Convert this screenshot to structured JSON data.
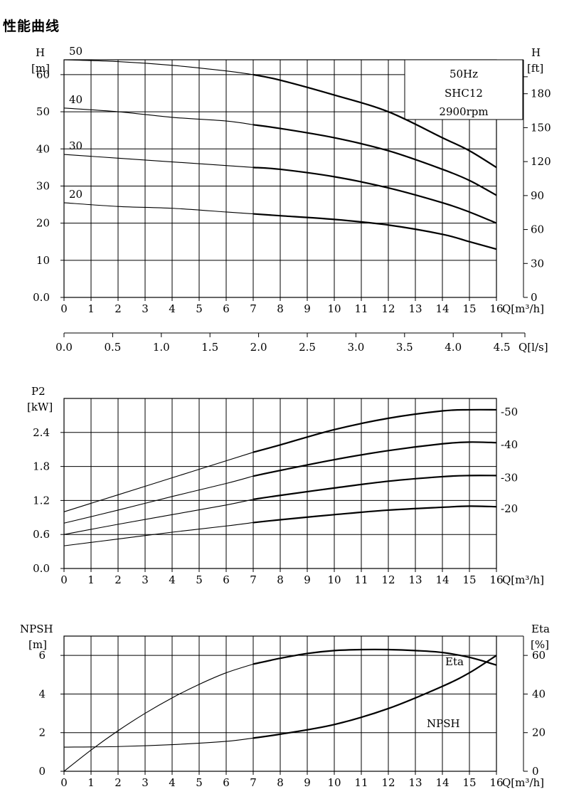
{
  "page_title": "性能曲线",
  "chart_data": [
    {
      "type": "line",
      "name": "head",
      "left_axis_label": [
        "H",
        "[m]"
      ],
      "right_axis_label": [
        "H",
        "[ft]"
      ],
      "x_axis_label": "Q[m³/h]",
      "x_ticks": [
        "0",
        "1",
        "2",
        "3",
        "4",
        "5",
        "6",
        "7",
        "8",
        "9",
        "10",
        "11",
        "12",
        "13",
        "14",
        "15",
        "16"
      ],
      "y_left_ticks": [
        "0.0",
        "10",
        "20",
        "30",
        "40",
        "50",
        "60"
      ],
      "y_right_ticks": [
        "0",
        "30",
        "60",
        "90",
        "120",
        "150",
        "180"
      ],
      "secondary_x_axis_label": "Q[l/s]",
      "secondary_x_ticks": [
        "0.0",
        "0.5",
        "1.0",
        "1.5",
        "2.0",
        "2.5",
        "3.0",
        "3.5",
        "4.0",
        "4.5"
      ],
      "xlim": [
        0,
        16
      ],
      "ylim": [
        0,
        64
      ],
      "y_right_lim_ft": [
        0,
        210
      ],
      "grid": true,
      "info_box": {
        "freq": "50Hz",
        "model": "SHC12",
        "speed": "2900rpm"
      },
      "duty_range": [
        7,
        16
      ],
      "series": [
        {
          "name": "50",
          "x": [
            0,
            2,
            4,
            6,
            7,
            8,
            10,
            12,
            14,
            15,
            16
          ],
          "y": [
            64,
            63.5,
            62.5,
            61,
            60,
            58.5,
            54.5,
            50,
            43,
            39.5,
            35
          ]
        },
        {
          "name": "40",
          "x": [
            0,
            2,
            4,
            6,
            7,
            8,
            10,
            12,
            14,
            15,
            16
          ],
          "y": [
            51,
            50,
            48.5,
            47.5,
            46.5,
            45.5,
            43,
            39.5,
            34.5,
            31.5,
            27.5
          ]
        },
        {
          "name": "30",
          "x": [
            0,
            2,
            4,
            6,
            7,
            8,
            10,
            12,
            14,
            15,
            16
          ],
          "y": [
            38.5,
            37.5,
            36.5,
            35.5,
            35,
            34.5,
            32.5,
            29.5,
            25.5,
            23,
            20
          ]
        },
        {
          "name": "20",
          "x": [
            0,
            2,
            4,
            6,
            7,
            8,
            10,
            12,
            14,
            15,
            16
          ],
          "y": [
            25.5,
            24.5,
            24,
            23,
            22.5,
            22,
            21,
            19.5,
            17,
            15,
            13
          ]
        }
      ]
    },
    {
      "type": "line",
      "name": "power",
      "left_axis_label": [
        "P2",
        "[kW]"
      ],
      "x_axis_label": "Q[m³/h]",
      "x_ticks": [
        "0",
        "1",
        "2",
        "3",
        "4",
        "5",
        "6",
        "7",
        "8",
        "9",
        "10",
        "11",
        "12",
        "13",
        "14",
        "15",
        "16"
      ],
      "y_ticks": [
        "0.0",
        "0.6",
        "1.2",
        "1.8",
        "2.4"
      ],
      "xlim": [
        0,
        16
      ],
      "ylim": [
        0,
        3.0
      ],
      "grid": true,
      "duty_range": [
        7,
        16
      ],
      "series": [
        {
          "name": "-50",
          "x": [
            0,
            2,
            4,
            6,
            7,
            8,
            10,
            12,
            14,
            15,
            16
          ],
          "y": [
            1.0,
            1.3,
            1.6,
            1.9,
            2.05,
            2.18,
            2.45,
            2.65,
            2.78,
            2.8,
            2.8
          ]
        },
        {
          "name": "-40",
          "x": [
            0,
            2,
            4,
            6,
            7,
            8,
            10,
            12,
            14,
            15,
            16
          ],
          "y": [
            0.8,
            1.03,
            1.27,
            1.5,
            1.63,
            1.73,
            1.92,
            2.08,
            2.2,
            2.23,
            2.22
          ]
        },
        {
          "name": "-30",
          "x": [
            0,
            2,
            4,
            6,
            7,
            8,
            10,
            12,
            14,
            15,
            16
          ],
          "y": [
            0.6,
            0.78,
            0.95,
            1.12,
            1.22,
            1.29,
            1.42,
            1.54,
            1.62,
            1.64,
            1.64
          ]
        },
        {
          "name": "-20",
          "x": [
            0,
            2,
            4,
            6,
            7,
            8,
            10,
            12,
            14,
            15,
            16
          ],
          "y": [
            0.4,
            0.52,
            0.64,
            0.75,
            0.81,
            0.86,
            0.95,
            1.03,
            1.08,
            1.1,
            1.09
          ]
        }
      ]
    },
    {
      "type": "line",
      "name": "npsh-eta",
      "left_axis_label": [
        "NPSH",
        "[m]"
      ],
      "right_axis_label": [
        "Eta",
        "[%]"
      ],
      "x_axis_label": "Q[m³/h]",
      "x_ticks": [
        "0",
        "1",
        "2",
        "3",
        "4",
        "5",
        "6",
        "7",
        "8",
        "9",
        "10",
        "11",
        "12",
        "13",
        "14",
        "15",
        "16"
      ],
      "y_left_ticks": [
        "0",
        "2",
        "4",
        "6"
      ],
      "y_right_ticks": [
        "0",
        "20",
        "40",
        "60"
      ],
      "xlim": [
        0,
        16
      ],
      "ylim": [
        0,
        7
      ],
      "y_right_lim": [
        0,
        70
      ],
      "grid": true,
      "duty_range": [
        7,
        16
      ],
      "series": [
        {
          "name": "NPSH",
          "x": [
            0,
            2,
            4,
            6,
            7,
            8,
            10,
            12,
            14,
            15,
            16
          ],
          "y": [
            1.25,
            1.28,
            1.38,
            1.55,
            1.72,
            1.92,
            2.42,
            3.25,
            4.4,
            5.1,
            6.0
          ]
        },
        {
          "name": "Eta",
          "x": [
            0,
            1,
            2,
            3,
            4,
            5,
            6,
            7,
            8,
            9,
            10,
            11,
            12,
            13,
            14,
            15,
            16
          ],
          "y": [
            0,
            11,
            21,
            30,
            38,
            45,
            51,
            55.5,
            58.5,
            61,
            62.5,
            63,
            63,
            62.5,
            61.5,
            59,
            55
          ]
        }
      ]
    }
  ]
}
